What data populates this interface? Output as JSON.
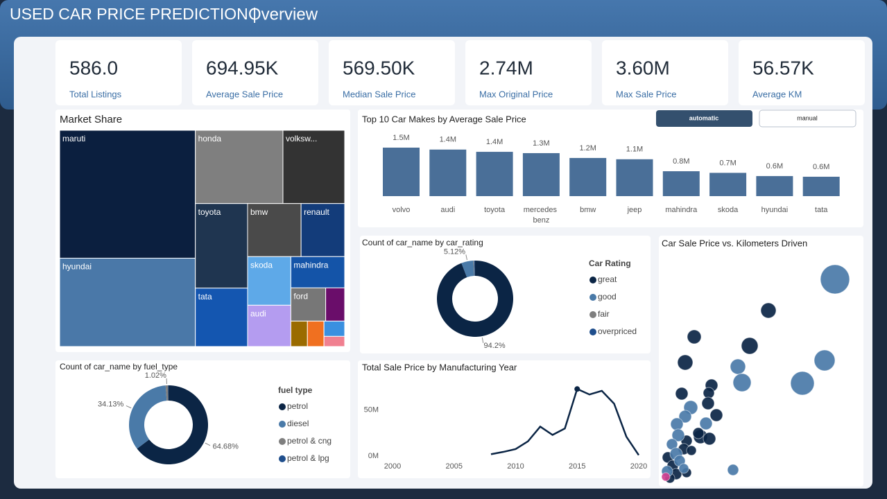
{
  "header": {
    "title": "USED CAR PRICE PREDICTION |",
    "subtitle": "Overview"
  },
  "kpis": [
    {
      "value": "586.0",
      "label": "Total Listings"
    },
    {
      "value": "694.95K",
      "label": "Average Sale Price"
    },
    {
      "value": "569.50K",
      "label": "Median Sale Price"
    },
    {
      "value": "2.74M",
      "label": "Max Original Price"
    },
    {
      "value": "3.60M",
      "label": "Max Sale Price"
    },
    {
      "value": "56.57K",
      "label": "Average KM"
    }
  ],
  "filters": [
    "automatic",
    "manual"
  ],
  "chart_data": [
    {
      "type": "treemap",
      "title": "Market Share",
      "categories": [
        "maruti",
        "hyundai",
        "honda",
        "volksw...",
        "toyota",
        "tata",
        "bmw",
        "renault",
        "skoda",
        "audi",
        "mahindra",
        "ford",
        null,
        null,
        null,
        null,
        null
      ],
      "values": [
        165,
        114,
        61,
        43,
        42,
        29,
        27,
        22,
        20,
        17,
        16,
        11,
        6,
        4,
        4,
        3,
        2
      ],
      "colors": [
        "#0b1f3f",
        "#4a78a8",
        "#7f7f7f",
        "#333333",
        "#1f3550",
        "#1456b0",
        "#4a4a4a",
        "#133c7a",
        "#5ea9e8",
        "#b49cf0",
        "#1454a8",
        "#777777",
        "#6a0d6a",
        "#9a6b00",
        "#f07020",
        "#3a90e0",
        "#f08090"
      ]
    },
    {
      "type": "bar",
      "title": "Top 10 Car Makes by Average Sale Price",
      "categories": [
        "volvo",
        "audi",
        "toyota",
        "mercedes benz",
        "bmw",
        "jeep",
        "mahindra",
        "skoda",
        "hyundai",
        "tata"
      ],
      "values": [
        1500000,
        1440000,
        1370000,
        1330000,
        1180000,
        1140000,
        770000,
        720000,
        620000,
        600000
      ],
      "value_labels": [
        "1.5M",
        "1.4M",
        "1.4M",
        "1.3M",
        "1.2M",
        "1.1M",
        "0.8M",
        "0.7M",
        "0.6M",
        "0.6M"
      ],
      "color": "#4a6f98"
    },
    {
      "type": "donut",
      "title": "Count of car_name by car_rating",
      "legend_title": "Car Rating",
      "categories": [
        "great",
        "good",
        "fair",
        "overpriced"
      ],
      "values": [
        94.2,
        5.12,
        0.34,
        0.34
      ],
      "value_labels": [
        "94.2%",
        "5.12%",
        null,
        null
      ],
      "colors": [
        "#0b2545",
        "#4a7aa8",
        "#7f7f7f",
        "#1f4e8c"
      ]
    },
    {
      "type": "donut",
      "title": "Count of car_name by fuel_type",
      "legend_title": "fuel type",
      "categories": [
        "petrol",
        "diesel",
        "petrol & cng",
        "petrol & lpg"
      ],
      "values": [
        64.68,
        34.13,
        1.02,
        0.17
      ],
      "value_labels": [
        "64.68%",
        "34.13%",
        "1.02%",
        null
      ],
      "colors": [
        "#0b2545",
        "#4a7aa8",
        "#7f7f7f",
        "#1f4e8c"
      ]
    },
    {
      "type": "line",
      "title": "Total Sale Price by Manufacturing Year",
      "x": [
        2008,
        2009,
        2010,
        2011,
        2012,
        2013,
        2014,
        2015,
        2016,
        2017,
        2018,
        2019,
        2020
      ],
      "values": [
        2000000,
        4500000,
        7600000,
        16000000,
        32000000,
        23000000,
        30000000,
        73000000,
        67000000,
        71000000,
        57000000,
        21000000,
        1000000
      ],
      "color": "#0b2545",
      "xlim": [
        2000,
        2020
      ],
      "xticks": [
        2000,
        2005,
        2010,
        2015,
        2020
      ],
      "ylim": [
        0,
        80000000
      ],
      "yticks": [
        {
          "value": 0,
          "label": "0M"
        },
        {
          "value": 50000000,
          "label": "50M"
        }
      ]
    },
    {
      "type": "scatter",
      "title": "Car Sale Price vs. Kilometers Driven",
      "xlim": [
        0,
        290000
      ],
      "ylim": [
        0,
        3350000
      ],
      "series": [
        {
          "color": "#0b2545",
          "x": [
            153000,
            46000,
            126000,
            33000,
            71000,
            28000,
            67000,
            66000,
            78000,
            55000,
            68000,
            35000,
            52000,
            31000,
            42000,
            8000,
            15000,
            20000,
            11000,
            35000
          ],
          "values": [
            2520000,
            2140000,
            2010000,
            1770000,
            1440000,
            1320000,
            1330000,
            1180000,
            1010000,
            700000,
            670000,
            640000,
            750000,
            520000,
            500000,
            400000,
            280000,
            160000,
            100000,
            180000
          ],
          "sizes": [
            11,
            10,
            12,
            11,
            9,
            9,
            8,
            9,
            9,
            10,
            9,
            8,
            8,
            8,
            7,
            8,
            8,
            8,
            7,
            7
          ]
        },
        {
          "color": "#4a7aa8",
          "x": [
            249000,
            109000,
            234000,
            115000,
            202000,
            41000,
            33000,
            63000,
            21000,
            23000,
            14000,
            20000,
            25000,
            31000,
            7000,
            102000
          ],
          "values": [
            2970000,
            1710000,
            1800000,
            1480000,
            1470000,
            1120000,
            990000,
            890000,
            880000,
            720000,
            590000,
            450000,
            350000,
            240000,
            200000,
            220000
          ],
          "sizes": [
            21,
            11,
            15,
            13,
            17,
            10,
            9,
            9,
            9,
            9,
            8,
            9,
            8,
            7,
            8,
            8
          ]
        },
        {
          "color": "#d04090",
          "x": [
            5000
          ],
          "values": [
            120000
          ],
          "sizes": [
            6
          ]
        }
      ]
    }
  ]
}
